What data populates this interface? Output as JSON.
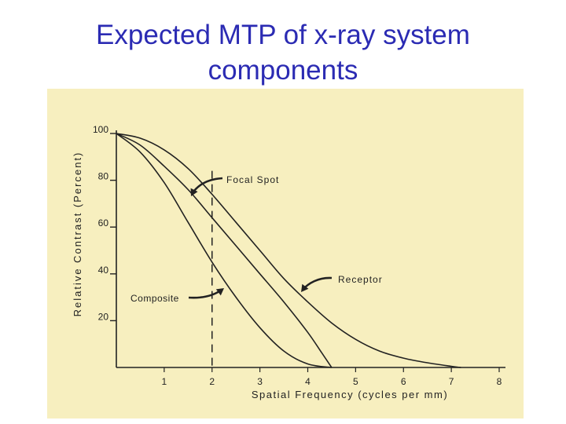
{
  "slide": {
    "title_line1": "Expected MTP of x-ray system",
    "title_line2": "components"
  },
  "colors": {
    "title": "#2b2bb3",
    "figure_background": "#f7efbf",
    "ink": "#222222"
  },
  "chart_data": {
    "type": "line",
    "title": "",
    "xlabel": "Spatial Frequency (cycles per mm)",
    "ylabel": "Relative Contrast (Percent)",
    "xlim": [
      0,
      8
    ],
    "ylim": [
      0,
      100
    ],
    "xticks": [
      "1",
      "2",
      "3",
      "4",
      "5",
      "6",
      "7",
      "8"
    ],
    "yticks": [
      "20",
      "40",
      "60",
      "80",
      "100"
    ],
    "grid": false,
    "series": [
      {
        "name": "Receptor",
        "x": [
          0,
          0.5,
          1,
          1.5,
          2,
          2.5,
          3,
          3.5,
          4,
          4.5,
          5,
          5.5,
          6,
          6.5,
          7,
          7.2
        ],
        "y": [
          100,
          98,
          93,
          85,
          74,
          62,
          50,
          38,
          28,
          19,
          12,
          7,
          4,
          2,
          0.5,
          0
        ]
      },
      {
        "name": "Focal Spot",
        "x": [
          0,
          0.5,
          1,
          1.5,
          2,
          2.5,
          3,
          3.5,
          4,
          4.3,
          4.5
        ],
        "y": [
          100,
          95,
          86,
          76,
          64,
          52,
          40,
          28,
          15,
          6,
          0
        ]
      },
      {
        "name": "Composite",
        "x": [
          0,
          0.5,
          1,
          1.5,
          2,
          2.5,
          3,
          3.5,
          4,
          4.5
        ],
        "y": [
          100,
          92,
          79,
          62,
          45,
          30,
          17,
          7,
          1.5,
          0
        ]
      }
    ],
    "reference_line": {
      "x": 2,
      "style": "dashed"
    },
    "annotations": [
      {
        "text": "Focal Spot",
        "points_to": "Focal Spot"
      },
      {
        "text": "Receptor",
        "points_to": "Receptor"
      },
      {
        "text": "Composite",
        "points_to": "Composite"
      }
    ]
  }
}
